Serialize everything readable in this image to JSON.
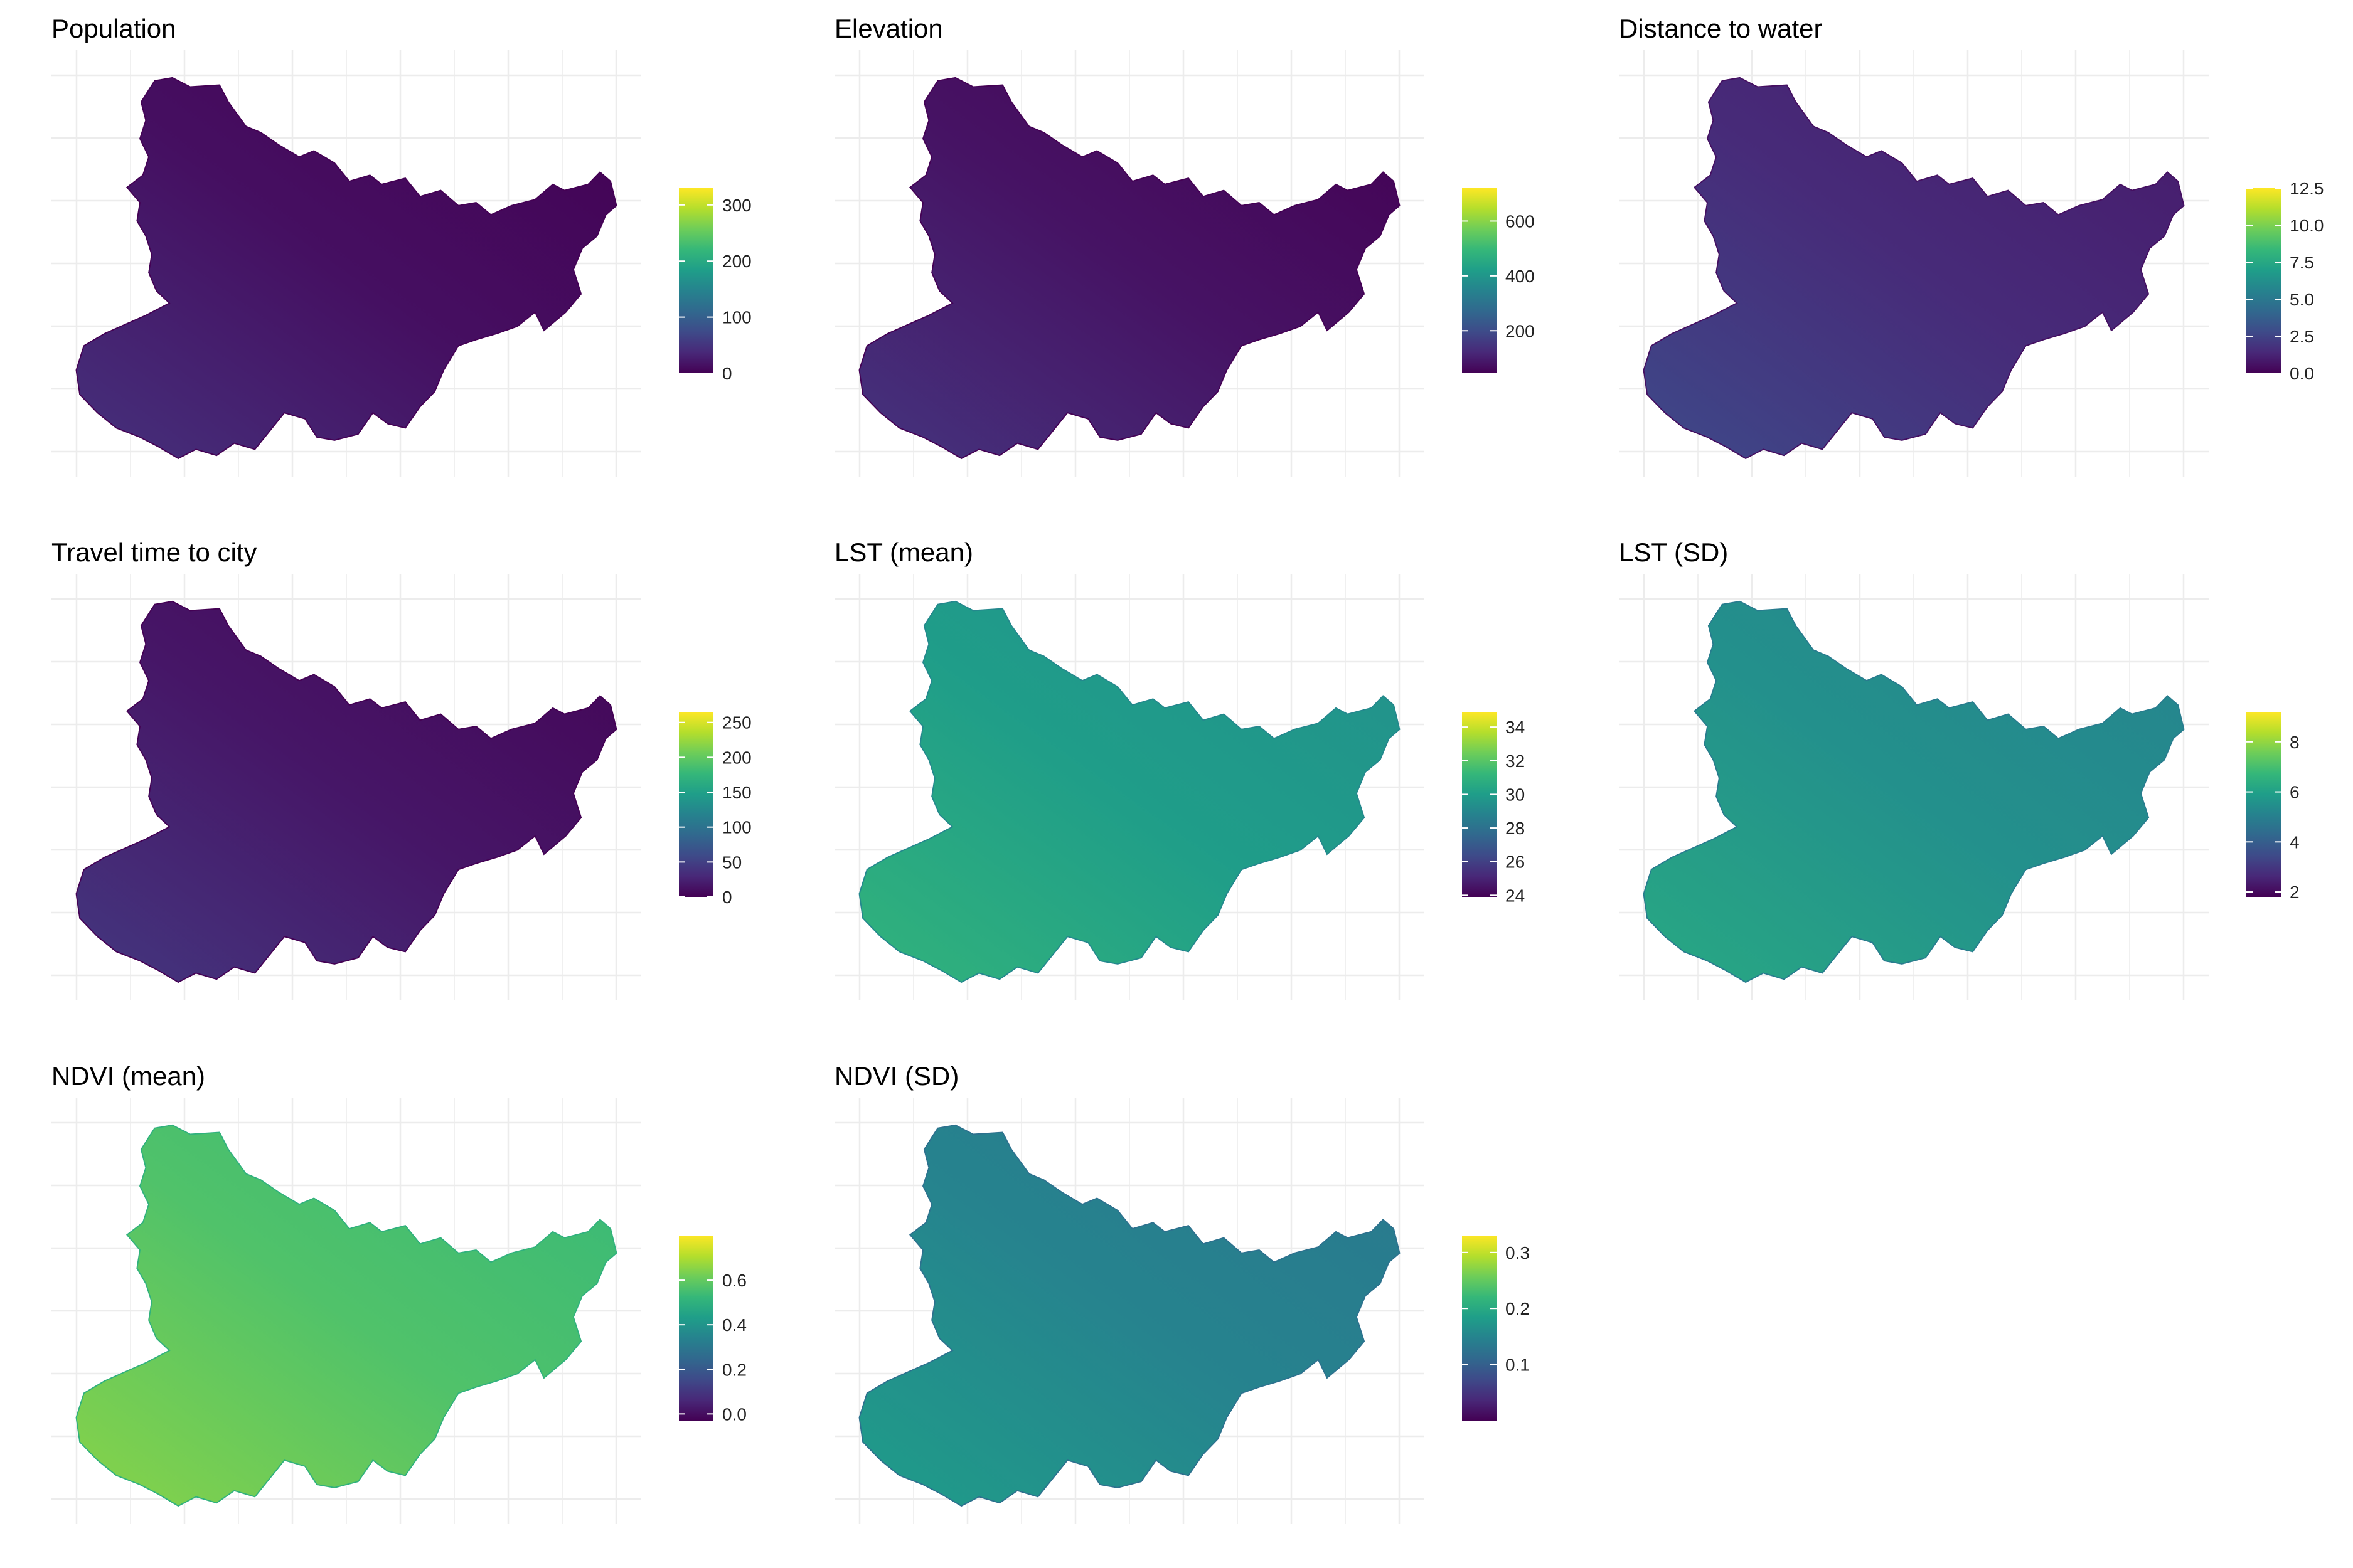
{
  "colors": {
    "viridis": [
      "#440154",
      "#482878",
      "#3E4A89",
      "#31688E",
      "#26828E",
      "#1F9E89",
      "#35B779",
      "#6DCD59",
      "#B4DE2C",
      "#FDE725"
    ],
    "grid": "#ececec",
    "text": "#000000"
  },
  "panels": [
    {
      "id": "population",
      "title": "Population",
      "legend": {
        "ticks": [
          {
            "label": "300",
            "v": 300
          },
          {
            "label": "200",
            "v": 200
          },
          {
            "label": "100",
            "v": 100
          },
          {
            "label": "0",
            "v": 0
          }
        ],
        "min": 0,
        "max": 330
      },
      "map_level": 0.04
    },
    {
      "id": "elevation",
      "title": "Elevation",
      "legend": {
        "ticks": [
          {
            "label": "600",
            "v": 600
          },
          {
            "label": "400",
            "v": 400
          },
          {
            "label": "200",
            "v": 200
          }
        ],
        "min": 45,
        "max": 720
      },
      "map_level": 0.05
    },
    {
      "id": "distance-to-water",
      "title": "Distance to water",
      "legend": {
        "ticks": [
          {
            "label": "12.5",
            "v": 12.5
          },
          {
            "label": "10.0",
            "v": 10
          },
          {
            "label": "7.5",
            "v": 7.5
          },
          {
            "label": "5.0",
            "v": 5
          },
          {
            "label": "2.5",
            "v": 2.5
          },
          {
            "label": "0.0",
            "v": 0
          }
        ],
        "min": 0,
        "max": 12.5
      },
      "map_level": 0.12
    },
    {
      "id": "travel-time-to-city",
      "title": "Travel time to city",
      "legend": {
        "ticks": [
          {
            "label": "250",
            "v": 250
          },
          {
            "label": "200",
            "v": 200
          },
          {
            "label": "150",
            "v": 150
          },
          {
            "label": "100",
            "v": 100
          },
          {
            "label": "50",
            "v": 50
          },
          {
            "label": "0",
            "v": 0
          }
        ],
        "min": 0,
        "max": 265
      },
      "map_level": 0.06
    },
    {
      "id": "lst-mean",
      "title": "LST (mean)",
      "legend": {
        "ticks": [
          {
            "label": "34",
            "v": 34
          },
          {
            "label": "32",
            "v": 32
          },
          {
            "label": "30",
            "v": 30
          },
          {
            "label": "28",
            "v": 28
          },
          {
            "label": "26",
            "v": 26
          },
          {
            "label": "24",
            "v": 24
          }
        ],
        "min": 23.9,
        "max": 34.9
      },
      "map_level": 0.55
    },
    {
      "id": "lst-sd",
      "title": "LST (SD)",
      "legend": {
        "ticks": [
          {
            "label": "8",
            "v": 8
          },
          {
            "label": "6",
            "v": 6
          },
          {
            "label": "4",
            "v": 4
          },
          {
            "label": "2",
            "v": 2
          }
        ],
        "min": 1.8,
        "max": 9.2
      },
      "map_level": 0.5
    },
    {
      "id": "ndvi-mean",
      "title": "NDVI (mean)",
      "legend": {
        "ticks": [
          {
            "label": "0.6",
            "v": 0.6
          },
          {
            "label": "0.4",
            "v": 0.4
          },
          {
            "label": "0.2",
            "v": 0.2
          },
          {
            "label": "0.0",
            "v": 0.0
          }
        ],
        "min": -0.03,
        "max": 0.8
      },
      "map_level": 0.72
    },
    {
      "id": "ndvi-sd",
      "title": "NDVI (SD)",
      "legend": {
        "ticks": [
          {
            "label": "0.3",
            "v": 0.3
          },
          {
            "label": "0.2",
            "v": 0.2
          },
          {
            "label": "0.1",
            "v": 0.1
          }
        ],
        "min": 0.0,
        "max": 0.33
      },
      "map_level": 0.45
    }
  ]
}
